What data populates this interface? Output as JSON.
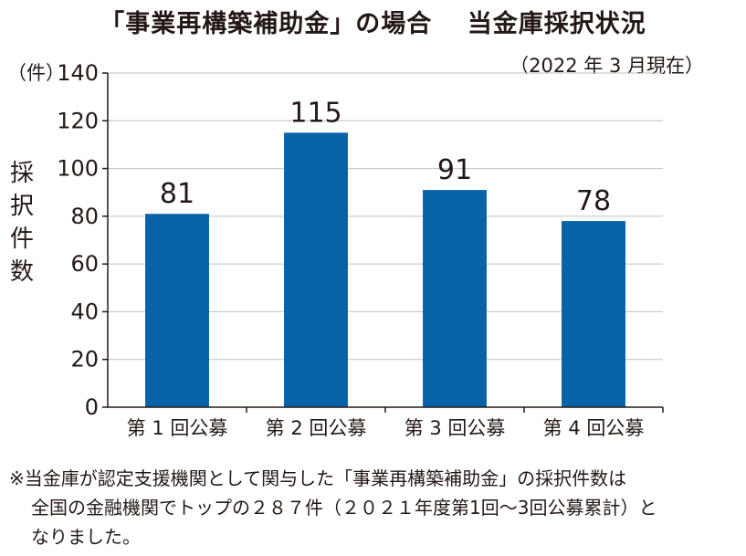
{
  "title": "「事業再構築補助金」の場合　 当金庫採択状況",
  "as_of": "（2022 年 3 月現在）",
  "unit": "（件）",
  "ylabel": "採択件数",
  "colors": {
    "bar": "#0762a8",
    "axis": "#231815",
    "grid": "#bfbfbf"
  },
  "chart_data": {
    "type": "bar",
    "title": "「事業再構築補助金」の場合　 当金庫採択状況",
    "xlabel": "",
    "ylabel": "採択件数",
    "unit": "（件）",
    "categories": [
      "第 1 回公募",
      "第 2 回公募",
      "第 3 回公募",
      "第 4 回公募"
    ],
    "values": [
      81,
      115,
      91,
      78
    ],
    "ylim": [
      0,
      140
    ],
    "yticks": [
      0,
      20,
      40,
      60,
      80,
      100,
      120,
      140
    ],
    "grid": true,
    "data_labels": true
  },
  "note": {
    "line1": "※当金庫が認定支援機関として関与した「事業再構築補助金」の採択件数は",
    "line2": "全国の金融機関でトップの２８７件（２０２１年度第1回～3回公募累計）と",
    "line3": "なりました。"
  }
}
